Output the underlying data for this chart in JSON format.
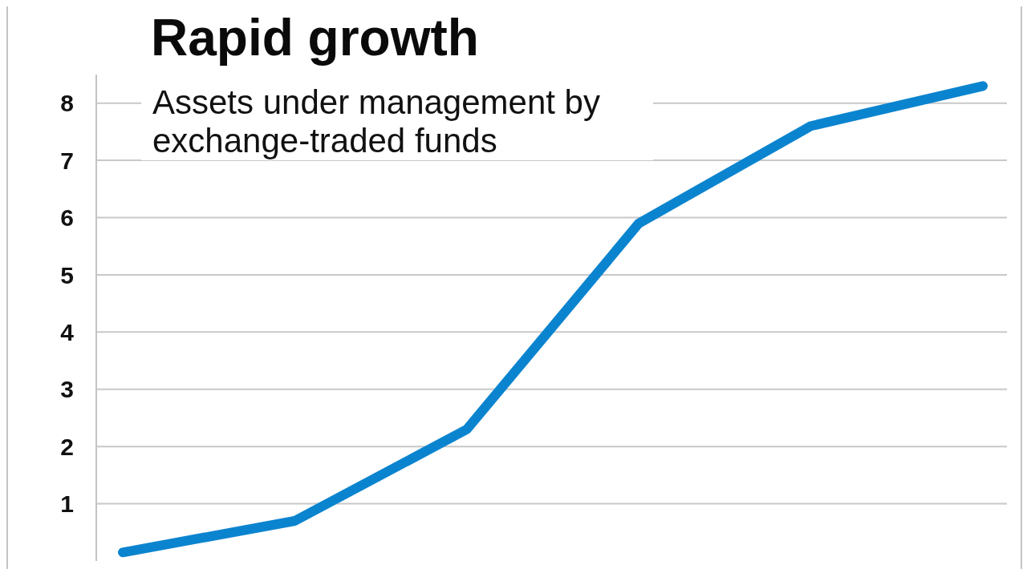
{
  "chart_data": {
    "type": "line",
    "title": "Rapid growth",
    "subtitle": "Assets under management by exchange-traded funds",
    "categories": [
      null,
      null,
      null,
      null,
      null,
      null
    ],
    "series": [
      {
        "color": "#0b84cf",
        "values": [
          0.15,
          0.7,
          2.3,
          5.9,
          7.6,
          8.3
        ]
      }
    ],
    "ylim": [
      0,
      8.5
    ],
    "yticks": [
      1,
      2,
      3,
      4,
      5,
      6,
      7,
      8
    ],
    "grid": "y",
    "marker": "none",
    "line_style": "solid",
    "tick_labels": "y"
  }
}
